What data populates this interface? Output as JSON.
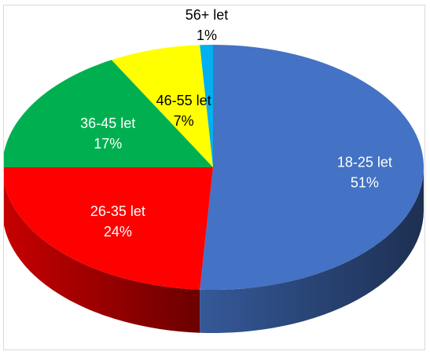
{
  "chart_data": {
    "type": "pie",
    "style": "3d",
    "title": "",
    "slices": [
      {
        "label": "18-25 let",
        "value": 51,
        "value_text": "51%",
        "color": "#4472C4",
        "label_color": "#ffffff"
      },
      {
        "label": "26-35 let",
        "value": 24,
        "value_text": "24%",
        "color": "#FF0000",
        "label_color": "#ffffff"
      },
      {
        "label": "36-45 let",
        "value": 17,
        "value_text": "17%",
        "color": "#00B050",
        "label_color": "#ffffff"
      },
      {
        "label": "46-55 let",
        "value": 7,
        "value_text": "7%",
        "color": "#FFFF00",
        "label_color": "#000000"
      },
      {
        "label": "56+ let",
        "value": 1,
        "value_text": "1%",
        "color": "#00B0F0",
        "label_color": "#000000"
      }
    ],
    "legend": "none"
  }
}
